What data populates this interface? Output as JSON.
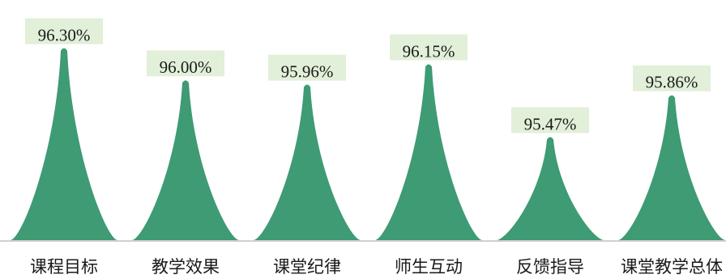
{
  "chart_data": {
    "type": "bar",
    "categories": [
      "课程目标",
      "教学效果",
      "课堂纪律",
      "师生互动",
      "反馈指导",
      "课堂教学总体"
    ],
    "values": [
      96.3,
      96.0,
      95.96,
      96.15,
      95.47,
      95.86
    ],
    "data_labels": [
      "96.30%",
      "96.00%",
      "95.96%",
      "96.15%",
      "95.47%",
      "95.86%"
    ],
    "ylim": [
      94.5,
      96.35
    ],
    "colors": {
      "bar": "#3e9b74",
      "label_bg": "#e2efd9",
      "axis": "#d0d0d0"
    },
    "grid": false,
    "legend": "none"
  }
}
